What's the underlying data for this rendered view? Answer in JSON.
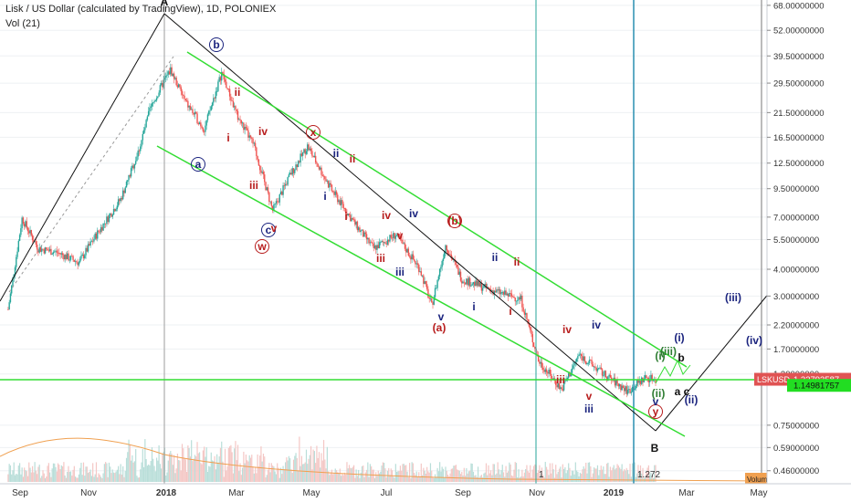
{
  "legend": {
    "title": "Lisk / US Dollar (calculated by TradingView), 1D, POLONIEX",
    "indicator": "Vol (21)"
  },
  "price_tag": {
    "symbol": "LSKUSD",
    "price": "1.22793587",
    "level": "1.14981757"
  },
  "colors": {
    "up": "#26a69a",
    "down": "#ef5350",
    "channel": "#33dd33",
    "line": "#111111",
    "red_label": "#b71c1c",
    "blue_label": "#1a237e",
    "green_label": "#2e7d32",
    "teal_line": "#26a69a"
  },
  "chart_data": {
    "type": "candlestick",
    "y_scale": "log",
    "y_ticks": [
      "68.00000000",
      "52.00000000",
      "39.50000000",
      "29.50000000",
      "21.50000000",
      "16.50000000",
      "12.50000000",
      "9.50000000",
      "7.00000000",
      "5.50000000",
      "4.00000000",
      "3.00000000",
      "2.20000000",
      "1.70000000",
      "1.30000000",
      "0.75000000",
      "0.59000000",
      "0.46000000"
    ],
    "x_ticks": [
      "Sep",
      "Nov",
      "2018",
      "Mar",
      "May",
      "Jul",
      "Sep",
      "Nov",
      "2019",
      "Mar",
      "May"
    ],
    "price_path": [
      {
        "date": "2017-08-20",
        "close": 2.6
      },
      {
        "date": "2017-09-01",
        "close": 6.9
      },
      {
        "date": "2017-09-15",
        "close": 5.0
      },
      {
        "date": "2017-10-01",
        "close": 4.8
      },
      {
        "date": "2017-10-20",
        "close": 4.3
      },
      {
        "date": "2017-11-05",
        "close": 5.9
      },
      {
        "date": "2017-11-25",
        "close": 8.5
      },
      {
        "date": "2017-12-10",
        "close": 14.0
      },
      {
        "date": "2017-12-20",
        "close": 22.0
      },
      {
        "date": "2018-01-01",
        "close": 30.0
      },
      {
        "date": "2018-01-07",
        "close": 34.0
      },
      {
        "date": "2018-01-20",
        "close": 24.0
      },
      {
        "date": "2018-02-05",
        "close": 18.0
      },
      {
        "date": "2018-02-20",
        "close": 33.0
      },
      {
        "date": "2018-03-05",
        "close": 21.0
      },
      {
        "date": "2018-03-20",
        "close": 15.0
      },
      {
        "date": "2018-04-05",
        "close": 7.5
      },
      {
        "date": "2018-04-20",
        "close": 11.0
      },
      {
        "date": "2018-05-05",
        "close": 15.0
      },
      {
        "date": "2018-05-25",
        "close": 9.5
      },
      {
        "date": "2018-06-15",
        "close": 6.5
      },
      {
        "date": "2018-07-01",
        "close": 5.0
      },
      {
        "date": "2018-07-20",
        "close": 5.8
      },
      {
        "date": "2018-08-10",
        "close": 4.0
      },
      {
        "date": "2018-08-20",
        "close": 2.7
      },
      {
        "date": "2018-09-01",
        "close": 5.2
      },
      {
        "date": "2018-09-15",
        "close": 3.6
      },
      {
        "date": "2018-10-10",
        "close": 3.2
      },
      {
        "date": "2018-11-05",
        "close": 2.9
      },
      {
        "date": "2018-11-20",
        "close": 1.5
      },
      {
        "date": "2018-12-10",
        "close": 1.1
      },
      {
        "date": "2018-12-25",
        "close": 1.6
      },
      {
        "date": "2019-01-15",
        "close": 1.3
      },
      {
        "date": "2019-02-05",
        "close": 1.08
      },
      {
        "date": "2019-02-20",
        "close": 1.25
      },
      {
        "date": "2019-03-01",
        "close": 1.23
      }
    ]
  },
  "labels": {
    "A": "A",
    "B": "B",
    "a": "a",
    "b": "b",
    "c": "c",
    "w": "w",
    "x": "x",
    "y": "y",
    "i": "i",
    "ii": "ii",
    "iii": "iii",
    "iv": "iv",
    "v": "v",
    "pa": "(a)",
    "pb": "(b)",
    "pc": "(c)",
    "pi": "(i)",
    "pii": "(ii)",
    "piii": "(iii)",
    "piv": "(iv)",
    "pv": "(v)",
    "b_small": "b",
    "a_small": "a",
    "c_small": "c"
  },
  "bottom_marks": {
    "one": "1",
    "fib": "1.272",
    "volume_ma": "Volume MA"
  }
}
